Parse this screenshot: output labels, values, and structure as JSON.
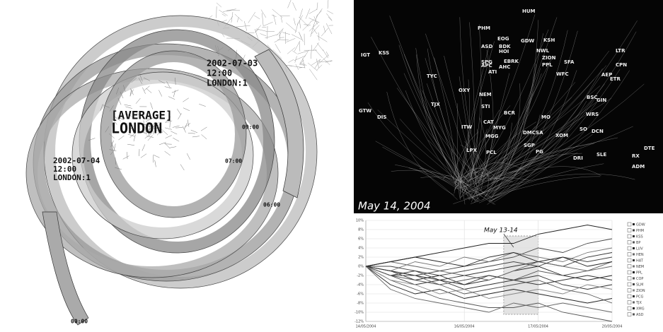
{
  "left_panel": {
    "labels": [
      "[AVERAGE]",
      "LONDON",
      "2002-07-03",
      "12:00",
      "LONDON:1",
      "2002-07-04",
      "12:00",
      "LONDON:1",
      "06:00",
      "09:00",
      "07:00",
      "00:00"
    ]
  },
  "scatter_panel": {
    "date": "May 14, 2004",
    "tickers": [
      "HUM",
      "PHM",
      "EOG",
      "GDW",
      "KSH",
      "ASD",
      "BDK",
      "HOI",
      "NWL",
      "ZION",
      "IGT",
      "KSS",
      "APC",
      "SPG",
      "EBRK",
      "AHC",
      "PPL",
      "SFA",
      "LTR",
      "CPN",
      "AEP",
      "ETR",
      "TYC",
      "ATI",
      "WFC",
      "OXY",
      "NEM",
      "BSC",
      "GIN",
      "GTW",
      "DIS",
      "TJX",
      "STI",
      "BCR",
      "MO",
      "CAT",
      "ITW",
      "MYG",
      "MGG",
      "DMCSA",
      "XOM",
      "SO",
      "DCN",
      "LPX",
      "PCL",
      "SGP",
      "PG",
      "SLE",
      "DRI",
      "DTE",
      "RX",
      "ADM",
      "WRS"
    ]
  },
  "chart_data": {
    "type": "line",
    "annotation": "May 13-14",
    "categories": [
      "14/05/2004",
      null,
      null,
      null,
      "16/05/2004",
      null,
      null,
      "17/05/2004",
      null,
      null,
      "20/05/2004"
    ],
    "ylim": [
      -12,
      10
    ],
    "yticks": [
      {
        "value": 10,
        "label": "10%"
      },
      {
        "value": 8,
        "label": "8%"
      },
      {
        "value": 6,
        "label": "6%"
      },
      {
        "value": 4,
        "label": "4%"
      },
      {
        "value": 2,
        "label": "2%"
      },
      {
        "value": 0,
        "label": "0%"
      },
      {
        "value": -2,
        "label": "-2%"
      },
      {
        "value": -4,
        "label": "-4%"
      },
      {
        "value": -6,
        "label": "-6%"
      },
      {
        "value": -8,
        "label": "-8%"
      },
      {
        "value": -10,
        "label": "-10%"
      },
      {
        "value": -12,
        "label": "-12%"
      }
    ],
    "grid": true,
    "series": [
      {
        "name": "GDW",
        "color": "#222",
        "values": [
          0,
          1,
          2,
          3,
          4,
          5,
          5,
          7,
          8,
          9,
          8
        ]
      },
      {
        "name": "PHM",
        "color": "#444",
        "values": [
          0,
          -1,
          -2,
          -1,
          0,
          1,
          2,
          4,
          3,
          5,
          6
        ]
      },
      {
        "name": "KSS",
        "color": "#333",
        "values": [
          0,
          -2,
          -4,
          -3,
          -2,
          -1,
          0,
          1,
          0,
          2,
          3
        ]
      },
      {
        "name": "BP",
        "color": "#555",
        "values": [
          0,
          -3,
          -5,
          -7,
          -8,
          -9,
          -9,
          -8,
          -10,
          -11,
          -12
        ]
      },
      {
        "name": "LUV",
        "color": "#222",
        "values": [
          0,
          -1,
          -3,
          -2,
          -4,
          -3,
          -1,
          0,
          -2,
          -3,
          -2
        ]
      },
      {
        "name": "HEN",
        "color": "#666",
        "values": [
          0,
          1,
          0,
          -1,
          -2,
          -3,
          -1,
          1,
          0,
          -1,
          0
        ]
      },
      {
        "name": "HAT",
        "color": "#333",
        "values": [
          0,
          -2,
          -1,
          -3,
          -5,
          -4,
          -3,
          -2,
          -4,
          -5,
          -4
        ]
      },
      {
        "name": "NEM",
        "color": "#777",
        "values": [
          0,
          -1,
          1,
          0,
          2,
          1,
          3,
          2,
          1,
          3,
          4
        ]
      },
      {
        "name": "PPL",
        "color": "#222",
        "values": [
          0,
          -4,
          -6,
          -5,
          -7,
          -6,
          -5,
          -6,
          -7,
          -8,
          -7
        ]
      },
      {
        "name": "COP",
        "color": "#555",
        "values": [
          0,
          -2,
          -3,
          -4,
          -3,
          -2,
          -3,
          -1,
          -2,
          -1,
          1
        ]
      },
      {
        "name": "SLM",
        "color": "#444",
        "values": [
          0,
          0,
          -1,
          -2,
          -1,
          0,
          1,
          0,
          2,
          1,
          2
        ]
      },
      {
        "name": "ZION",
        "color": "#888",
        "values": [
          0,
          -3,
          -4,
          -6,
          -5,
          -7,
          -6,
          -5,
          -6,
          -4,
          -5
        ]
      },
      {
        "name": "PCG",
        "color": "#333",
        "values": [
          0,
          -1,
          -2,
          -3,
          -4,
          -2,
          -3,
          -4,
          -3,
          -2,
          -3
        ]
      },
      {
        "name": "TJX",
        "color": "#666",
        "values": [
          0,
          -5,
          -7,
          -8,
          -9,
          -10,
          -8,
          -9,
          -8,
          -9,
          -10
        ]
      },
      {
        "name": "XMG",
        "color": "#222",
        "values": [
          0,
          1,
          2,
          1,
          0,
          2,
          3,
          1,
          2,
          0,
          1
        ]
      },
      {
        "name": "ASD",
        "color": "#555",
        "values": [
          0,
          -2,
          -2,
          -4,
          -6,
          -5,
          -4,
          -3,
          -5,
          -6,
          -8
        ]
      }
    ]
  }
}
